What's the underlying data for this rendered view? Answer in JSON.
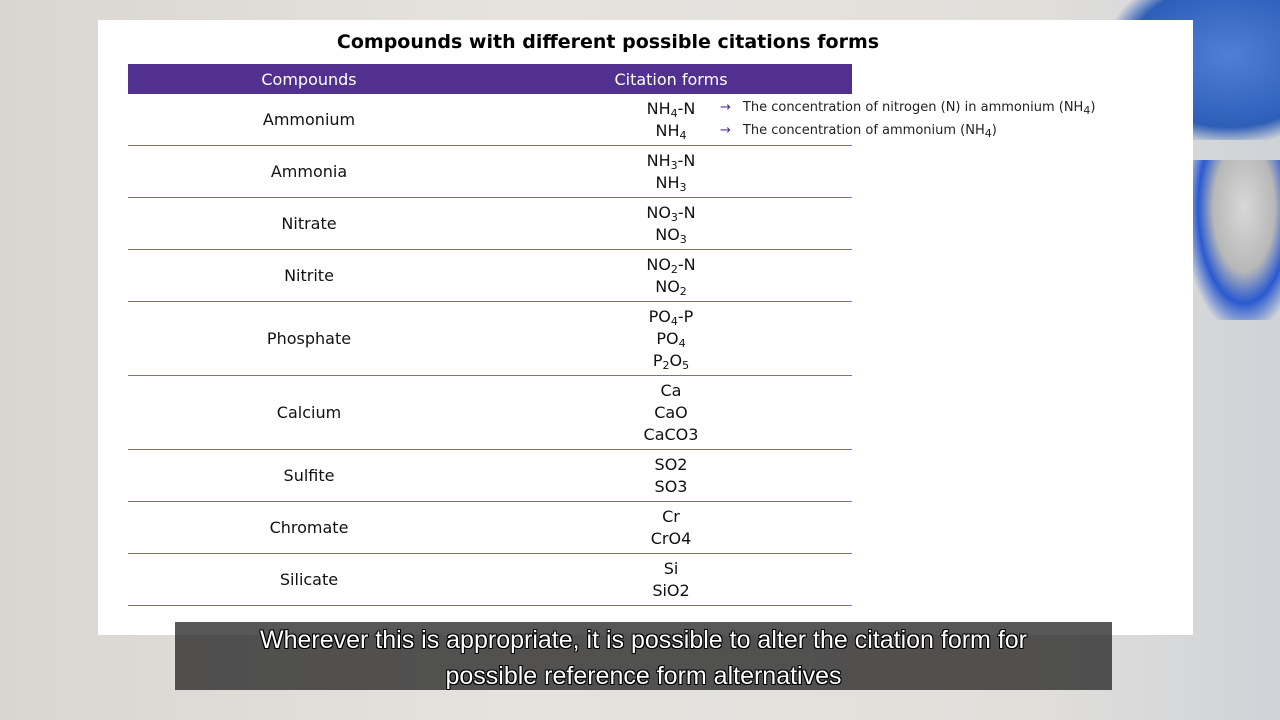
{
  "slide": {
    "title": "Compounds with different possible citations forms",
    "headers": [
      "Compounds",
      "Citation forms"
    ],
    "header_color": "#52308f",
    "rows": [
      {
        "compound": "Ammonium",
        "forms": [
          [
            [
              "NH",
              ""
            ],
            [
              "4",
              "sub"
            ],
            [
              "-N",
              ""
            ]
          ],
          [
            [
              "NH",
              ""
            ],
            [
              "4",
              "sub"
            ]
          ]
        ]
      },
      {
        "compound": "Ammonia",
        "forms": [
          [
            [
              "NH",
              ""
            ],
            [
              "3",
              "sub"
            ],
            [
              "-N",
              ""
            ]
          ],
          [
            [
              "NH",
              ""
            ],
            [
              "3",
              "sub"
            ]
          ]
        ]
      },
      {
        "compound": "Nitrate",
        "forms": [
          [
            [
              "NO",
              ""
            ],
            [
              "3",
              "sub"
            ],
            [
              "-N",
              ""
            ]
          ],
          [
            [
              "NO",
              ""
            ],
            [
              "3",
              "sub"
            ]
          ]
        ]
      },
      {
        "compound": "Nitrite",
        "forms": [
          [
            [
              "NO",
              ""
            ],
            [
              "2",
              "sub"
            ],
            [
              "-N",
              ""
            ]
          ],
          [
            [
              "NO",
              ""
            ],
            [
              "2",
              "sub"
            ]
          ]
        ]
      },
      {
        "compound": "Phosphate",
        "forms": [
          [
            [
              "PO",
              ""
            ],
            [
              "4",
              "sub"
            ],
            [
              "-P",
              ""
            ]
          ],
          [
            [
              "PO",
              ""
            ],
            [
              "4",
              "sub"
            ]
          ],
          [
            [
              "P",
              ""
            ],
            [
              "2",
              "sub"
            ],
            [
              "O",
              ""
            ],
            [
              "5",
              "sub"
            ]
          ]
        ]
      },
      {
        "compound": "Calcium",
        "forms": [
          [
            [
              "Ca",
              ""
            ]
          ],
          [
            [
              "CaO",
              ""
            ]
          ],
          [
            [
              "CaCO3",
              ""
            ]
          ]
        ]
      },
      {
        "compound": "Sulfite",
        "forms": [
          [
            [
              "SO2",
              ""
            ]
          ],
          [
            [
              "SO3",
              ""
            ]
          ]
        ]
      },
      {
        "compound": "Chromate",
        "forms": [
          [
            [
              "Cr",
              ""
            ]
          ],
          [
            [
              "CrO4",
              ""
            ]
          ]
        ]
      },
      {
        "compound": "Silicate",
        "forms": [
          [
            [
              "Si",
              ""
            ]
          ],
          [
            [
              "SiO2",
              ""
            ]
          ]
        ]
      }
    ],
    "notes": [
      {
        "arrow": "→",
        "text": "The concentration of nitrogen (N) in ammonium (NH",
        "sub": "4",
        "end": ")"
      },
      {
        "arrow": "→",
        "text": "The concentration of ammonium (NH",
        "sub": "4",
        "end": ")"
      }
    ]
  },
  "subtitle": {
    "line1": "Wherever this is appropriate, it is possible to alter the citation form  for",
    "line2": "possible reference form alternatives"
  }
}
